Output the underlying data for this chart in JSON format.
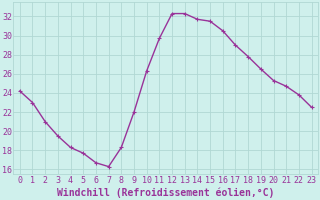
{
  "x": [
    0,
    1,
    2,
    3,
    4,
    5,
    6,
    7,
    8,
    9,
    10,
    11,
    12,
    13,
    14,
    15,
    16,
    17,
    18,
    19,
    20,
    21,
    22,
    23
  ],
  "y": [
    24.2,
    23.0,
    21.0,
    19.5,
    18.3,
    17.7,
    16.7,
    16.3,
    18.3,
    22.0,
    26.3,
    29.7,
    32.3,
    32.3,
    31.7,
    31.5,
    30.5,
    29.0,
    27.8,
    26.5,
    25.3,
    24.7,
    23.8,
    22.5
  ],
  "line_color": "#993399",
  "marker": "P",
  "markersize": 2.5,
  "linewidth": 1.0,
  "xlabel": "Windchill (Refroidissement éolien,°C)",
  "xlabel_fontsize": 7,
  "bg_color": "#cff0ec",
  "grid_color": "#b0d8d4",
  "tick_color": "#993399",
  "xlabel_color": "#993399",
  "xlim": [
    -0.5,
    23.5
  ],
  "ylim": [
    15.5,
    33.5
  ],
  "yticks": [
    16,
    18,
    20,
    22,
    24,
    26,
    28,
    30,
    32
  ],
  "xticks": [
    0,
    1,
    2,
    3,
    4,
    5,
    6,
    7,
    8,
    9,
    10,
    11,
    12,
    13,
    14,
    15,
    16,
    17,
    18,
    19,
    20,
    21,
    22,
    23
  ],
  "tick_fontsize": 6
}
